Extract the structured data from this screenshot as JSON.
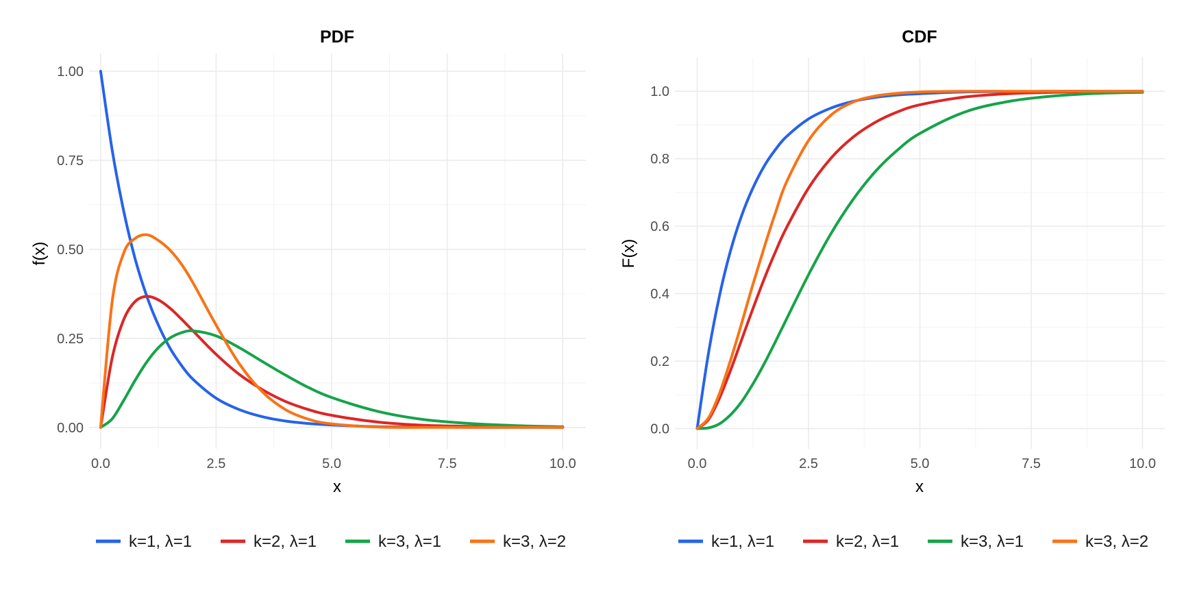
{
  "chart_data": [
    {
      "type": "line",
      "title": "PDF",
      "xlabel": "x",
      "ylabel": "f(x)",
      "xlim": [
        -0.25,
        10.5
      ],
      "ylim": [
        -0.06,
        1.05
      ],
      "x_ticks": [
        0,
        2.5,
        5,
        7.5,
        10
      ],
      "x_tick_labels": [
        "0.0",
        "2.5",
        "5.0",
        "7.5",
        "10.0"
      ],
      "y_ticks": [
        0,
        0.25,
        0.5,
        0.75,
        1
      ],
      "y_tick_labels": [
        "0.00",
        "0.25",
        "0.50",
        "0.75",
        "1.00"
      ],
      "grid": true,
      "legend_position": "bottom",
      "x": [
        0,
        0.25,
        0.5,
        0.75,
        1,
        1.25,
        1.5,
        1.75,
        2,
        2.5,
        3,
        3.5,
        4,
        4.5,
        5,
        6,
        7,
        8,
        9,
        10
      ],
      "series": [
        {
          "name": "k=1, λ=1",
          "color": "#2563eb",
          "values": [
            1.0,
            0.779,
            0.607,
            0.472,
            0.368,
            0.287,
            0.223,
            0.174,
            0.135,
            0.082,
            0.05,
            0.03,
            0.018,
            0.011,
            0.007,
            0.002,
            0.001,
            0.0,
            0.0,
            0.0
          ]
        },
        {
          "name": "k=2, λ=1",
          "color": "#dc2626",
          "values": [
            0.0,
            0.195,
            0.303,
            0.354,
            0.368,
            0.358,
            0.335,
            0.304,
            0.271,
            0.205,
            0.149,
            0.106,
            0.073,
            0.05,
            0.034,
            0.015,
            0.006,
            0.003,
            0.001,
            0.0
          ]
        },
        {
          "name": "k=3, λ=1",
          "color": "#16a34a",
          "values": [
            0.0,
            0.024,
            0.076,
            0.133,
            0.184,
            0.224,
            0.251,
            0.266,
            0.271,
            0.257,
            0.224,
            0.185,
            0.147,
            0.112,
            0.084,
            0.045,
            0.022,
            0.011,
            0.005,
            0.002
          ]
        },
        {
          "name": "k=3, λ=2",
          "color": "#f97316",
          "values": [
            0.0,
            0.353,
            0.49,
            0.531,
            0.541,
            0.525,
            0.498,
            0.458,
            0.406,
            0.287,
            0.179,
            0.1,
            0.05,
            0.023,
            0.01,
            0.001,
            0.0,
            0.0,
            0.0,
            0.0
          ]
        }
      ]
    },
    {
      "type": "line",
      "title": "CDF",
      "xlabel": "x",
      "ylabel": "F(x)",
      "xlim": [
        -0.5,
        10.5
      ],
      "ylim": [
        -0.06,
        1.1
      ],
      "x_ticks": [
        0,
        2.5,
        5,
        7.5,
        10
      ],
      "x_tick_labels": [
        "0.0",
        "2.5",
        "5.0",
        "7.5",
        "10.0"
      ],
      "y_ticks": [
        0,
        0.2,
        0.4,
        0.6,
        0.8,
        1
      ],
      "y_tick_labels": [
        "0.0",
        "0.2",
        "0.4",
        "0.6",
        "0.8",
        "1.0"
      ],
      "grid": true,
      "legend_position": "bottom",
      "x": [
        0,
        0.25,
        0.5,
        0.75,
        1,
        1.25,
        1.5,
        1.75,
        2,
        2.5,
        3,
        3.5,
        4,
        4.5,
        5,
        6,
        7,
        8,
        9,
        10
      ],
      "series": [
        {
          "name": "k=1, λ=1",
          "color": "#2563eb",
          "values": [
            0.0,
            0.221,
            0.393,
            0.528,
            0.632,
            0.713,
            0.777,
            0.826,
            0.865,
            0.918,
            0.95,
            0.97,
            0.982,
            0.989,
            0.993,
            0.998,
            0.999,
            1.0,
            1.0,
            1.0
          ]
        },
        {
          "name": "k=2, λ=1",
          "color": "#dc2626",
          "values": [
            0.0,
            0.026,
            0.09,
            0.173,
            0.264,
            0.355,
            0.442,
            0.522,
            0.594,
            0.713,
            0.801,
            0.864,
            0.908,
            0.939,
            0.96,
            0.983,
            0.993,
            0.997,
            0.999,
            1.0
          ]
        },
        {
          "name": "k=3, λ=1",
          "color": "#16a34a",
          "values": [
            0.0,
            0.002,
            0.014,
            0.041,
            0.08,
            0.132,
            0.191,
            0.256,
            0.323,
            0.456,
            0.577,
            0.679,
            0.762,
            0.826,
            0.875,
            0.938,
            0.97,
            0.986,
            0.994,
            0.997
          ]
        },
        {
          "name": "k=3, λ=2",
          "color": "#f97316",
          "values": [
            0.0,
            0.031,
            0.104,
            0.203,
            0.313,
            0.427,
            0.535,
            0.637,
            0.729,
            0.854,
            0.929,
            0.968,
            0.986,
            0.994,
            0.998,
            1.0,
            1.0,
            1.0,
            1.0,
            1.0
          ]
        }
      ]
    }
  ]
}
